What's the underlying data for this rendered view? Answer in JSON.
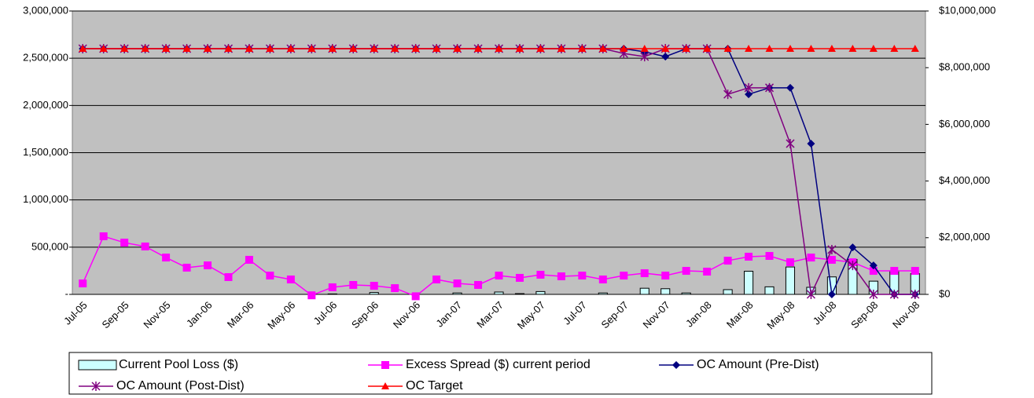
{
  "chart_data": {
    "type": "combo",
    "categories": [
      "Jul-05",
      null,
      "Sep-05",
      null,
      "Nov-05",
      null,
      "Jan-06",
      null,
      "Mar-06",
      null,
      "May-06",
      null,
      "Jul-06",
      null,
      "Sep-06",
      null,
      "Nov-06",
      null,
      "Jan-07",
      null,
      "Mar-07",
      null,
      "May-07",
      null,
      "Jul-07",
      null,
      "Sep-07",
      null,
      "Nov-07",
      null,
      "Jan-08",
      null,
      "Mar-08",
      null,
      "May-08",
      null,
      "Jul-08",
      null,
      "Sep-08",
      null,
      "Nov-08"
    ],
    "ylim": [
      0,
      3000000
    ],
    "yticks": [
      {
        "value": 0,
        "label": "-"
      },
      {
        "value": 500000,
        "label": "500,000"
      },
      {
        "value": 1000000,
        "label": "1,000,000"
      },
      {
        "value": 1500000,
        "label": "1,500,000"
      },
      {
        "value": 2000000,
        "label": "2,000,000"
      },
      {
        "value": 2500000,
        "label": "2,500,000"
      },
      {
        "value": 3000000,
        "label": "3,000,000"
      }
    ],
    "y2lim": [
      0,
      10000000
    ],
    "y2ticks": [
      {
        "value": 0,
        "label": "$0"
      },
      {
        "value": 2000000,
        "label": "$2,000,000"
      },
      {
        "value": 4000000,
        "label": "$4,000,000"
      },
      {
        "value": 6000000,
        "label": "$6,000,000"
      },
      {
        "value": 8000000,
        "label": "$8,000,000"
      },
      {
        "value": 10000000,
        "label": "$10,000,000"
      }
    ],
    "grid": true,
    "series": [
      {
        "name": "Current Pool Loss ($)",
        "type": "bar",
        "color": "#ccffff",
        "values": [
          0,
          0,
          0,
          0,
          0,
          0,
          0,
          0,
          0,
          0,
          0,
          0,
          5000,
          0,
          20000,
          0,
          0,
          0,
          15000,
          0,
          25000,
          8000,
          30000,
          0,
          0,
          15000,
          0,
          65000,
          60000,
          15000,
          0,
          50000,
          245000,
          80000,
          290000,
          75000,
          185000,
          370000,
          140000,
          250000,
          220000
        ]
      },
      {
        "name": "Excess Spread ($) current period",
        "type": "line",
        "marker": "square",
        "color": "#ff00ff",
        "values": [
          116000,
          615000,
          548000,
          507000,
          390000,
          283000,
          307000,
          183000,
          366000,
          199000,
          158000,
          -10000,
          75000,
          100000,
          91000,
          66000,
          -20000,
          158000,
          116000,
          100000,
          199000,
          175000,
          208000,
          191000,
          199000,
          158000,
          199000,
          224000,
          199000,
          249000,
          241000,
          357000,
          399000,
          407000,
          340000,
          390000,
          366000,
          340000,
          249000,
          249000,
          249000
        ]
      },
      {
        "name": "OC Amount (Pre-Dist)",
        "type": "line",
        "axis": "y2",
        "marker": "diamond",
        "color": "#000080",
        "values": [
          8670000,
          8670000,
          8670000,
          8670000,
          8670000,
          8670000,
          8670000,
          8670000,
          8670000,
          8670000,
          8670000,
          8670000,
          8670000,
          8670000,
          8670000,
          8670000,
          8670000,
          8670000,
          8670000,
          8670000,
          8670000,
          8670000,
          8670000,
          8670000,
          8670000,
          8670000,
          8670000,
          8560000,
          8390000,
          8670000,
          8670000,
          8670000,
          7060000,
          7290000,
          7290000,
          5320000,
          0,
          1660000,
          1020000,
          0,
          0
        ]
      },
      {
        "name": "OC Amount (Post-Dist)",
        "type": "line",
        "axis": "y2",
        "marker": "asterisk",
        "color": "#800080",
        "values": [
          8670000,
          8670000,
          8670000,
          8670000,
          8670000,
          8670000,
          8670000,
          8670000,
          8670000,
          8670000,
          8670000,
          8670000,
          8670000,
          8670000,
          8670000,
          8670000,
          8670000,
          8670000,
          8670000,
          8670000,
          8670000,
          8670000,
          8670000,
          8670000,
          8670000,
          8670000,
          8500000,
          8390000,
          8670000,
          8670000,
          8670000,
          7060000,
          7290000,
          7290000,
          5320000,
          0,
          1580000,
          1020000,
          0,
          0,
          0
        ]
      },
      {
        "name": "OC Target",
        "type": "line",
        "axis": "y2",
        "marker": "triangle",
        "color": "#ff0000",
        "values": [
          8670000,
          8670000,
          8670000,
          8670000,
          8670000,
          8670000,
          8670000,
          8670000,
          8670000,
          8670000,
          8670000,
          8670000,
          8670000,
          8670000,
          8670000,
          8670000,
          8670000,
          8670000,
          8670000,
          8670000,
          8670000,
          8670000,
          8670000,
          8670000,
          8670000,
          8670000,
          8670000,
          8670000,
          8670000,
          8670000,
          8670000,
          8670000,
          8670000,
          8670000,
          8670000,
          8670000,
          8670000,
          8670000,
          8670000,
          8670000,
          8670000
        ]
      }
    ]
  }
}
